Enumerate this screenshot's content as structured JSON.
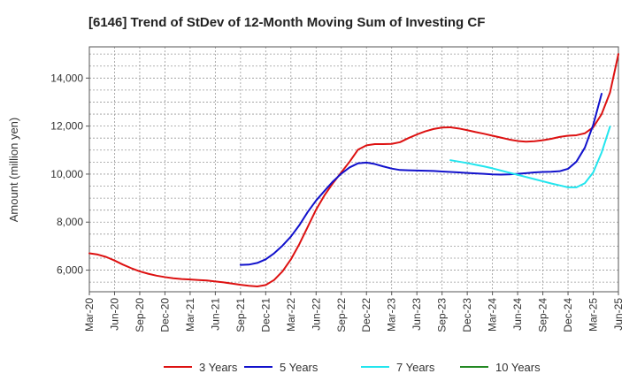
{
  "chart_data": {
    "type": "line",
    "title": "[6146]  Trend of StDev of 12-Month Moving Sum of Investing CF",
    "xlabel": "",
    "ylabel": "Amount (million yen)",
    "ylim": [
      5100,
      15300
    ],
    "yticks": [
      6000,
      8000,
      10000,
      12000,
      14000
    ],
    "ytick_labels": [
      "6,000",
      "8,000",
      "10,000",
      "12,000",
      "14,000"
    ],
    "x_tick_labels": [
      "Mar-20",
      "Jun-20",
      "Sep-20",
      "Dec-20",
      "Mar-21",
      "Jun-21",
      "Sep-21",
      "Dec-21",
      "Mar-22",
      "Jun-22",
      "Sep-22",
      "Dec-22",
      "Mar-23",
      "Jun-23",
      "Sep-23",
      "Dec-23",
      "Mar-24",
      "Jun-24",
      "Sep-24",
      "Dec-24",
      "Mar-25",
      "Jun-25"
    ],
    "grid": true,
    "legend_position": "bottom",
    "series": [
      {
        "name": "3 Years",
        "color": "#dd1111",
        "start_index": 0,
        "values": [
          6700,
          6650,
          6550,
          6400,
          6230,
          6080,
          5950,
          5850,
          5770,
          5710,
          5660,
          5630,
          5610,
          5590,
          5570,
          5530,
          5490,
          5440,
          5390,
          5350,
          5320,
          5380,
          5590,
          5950,
          6450,
          7080,
          7800,
          8520,
          9120,
          9620,
          10070,
          10520,
          11020,
          11200,
          11250,
          11250,
          11260,
          11330,
          11500,
          11650,
          11780,
          11880,
          11940,
          11950,
          11900,
          11830,
          11750,
          11680,
          11600,
          11520,
          11440,
          11380,
          11350,
          11370,
          11410,
          11470,
          11550,
          11600,
          11620,
          11700,
          11950,
          12500,
          13400,
          15000
        ]
      },
      {
        "name": "5 Years",
        "color": "#1111cc",
        "start_index": 18,
        "values": [
          6220,
          6230,
          6300,
          6450,
          6700,
          7020,
          7400,
          7870,
          8420,
          8900,
          9300,
          9690,
          10020,
          10280,
          10450,
          10480,
          10420,
          10320,
          10230,
          10170,
          10160,
          10150,
          10140,
          10130,
          10110,
          10090,
          10070,
          10050,
          10030,
          10010,
          9990,
          9980,
          9990,
          10010,
          10040,
          10070,
          10090,
          10100,
          10120,
          10220,
          10520,
          11100,
          12050,
          13350
        ]
      },
      {
        "name": "7 Years",
        "color": "#22e5ee",
        "start_index": 43,
        "values": [
          10580,
          10520,
          10460,
          10390,
          10320,
          10240,
          10150,
          10060,
          9970,
          9880,
          9790,
          9700,
          9610,
          9530,
          9450,
          9450,
          9620,
          10070,
          10900,
          11980
        ]
      },
      {
        "name": "10 Years",
        "color": "#228822",
        "start_index": 0,
        "values": []
      }
    ]
  }
}
